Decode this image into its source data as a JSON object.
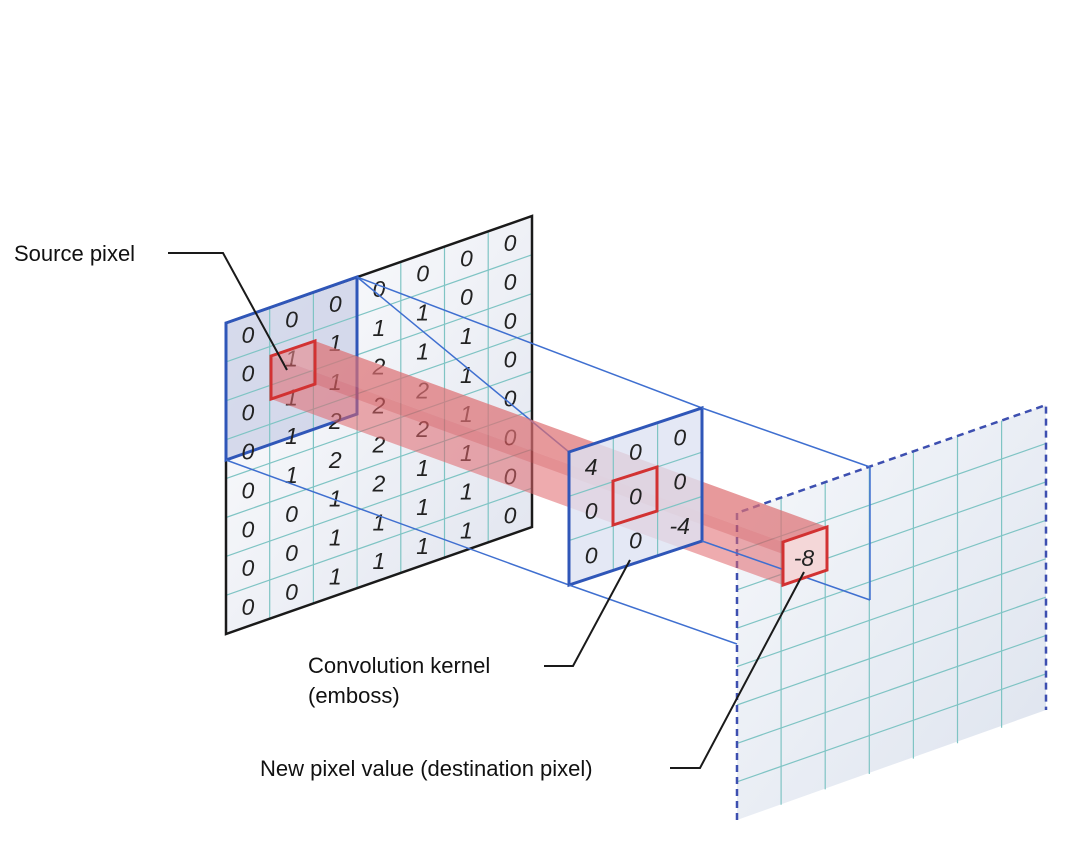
{
  "labels": {
    "source_pixel": "Source pixel",
    "kernel_line1": "Convolution kernel",
    "kernel_line2": "(emboss)",
    "new_pixel": "New pixel value (destination pixel)"
  },
  "source_grid": [
    [
      "0",
      "0",
      "0",
      "0",
      "0",
      "0",
      "0"
    ],
    [
      "0",
      "1",
      "1",
      "1",
      "1",
      "0",
      "0"
    ],
    [
      "0",
      "1",
      "1",
      "2",
      "1",
      "1",
      "0"
    ],
    [
      "0",
      "1",
      "2",
      "2",
      "2",
      "1",
      "0"
    ],
    [
      "0",
      "1",
      "2",
      "2",
      "2",
      "1",
      "0"
    ],
    [
      "0",
      "0",
      "1",
      "2",
      "1",
      "1",
      "0"
    ],
    [
      "0",
      "0",
      "1",
      "1",
      "1",
      "1",
      "0"
    ],
    [
      "0",
      "0",
      "1",
      "1",
      "1",
      "1",
      "0"
    ]
  ],
  "kernel_grid": [
    [
      "4",
      "0",
      "0"
    ],
    [
      "0",
      "0",
      "0"
    ],
    [
      "0",
      "0",
      "-4"
    ]
  ],
  "result_value": "-8",
  "colors": {
    "blue": "#2f56b8",
    "red": "#d23232",
    "beam": "#e8878a",
    "grid": "#7fc4c4",
    "dark": "#1a1a1a"
  }
}
